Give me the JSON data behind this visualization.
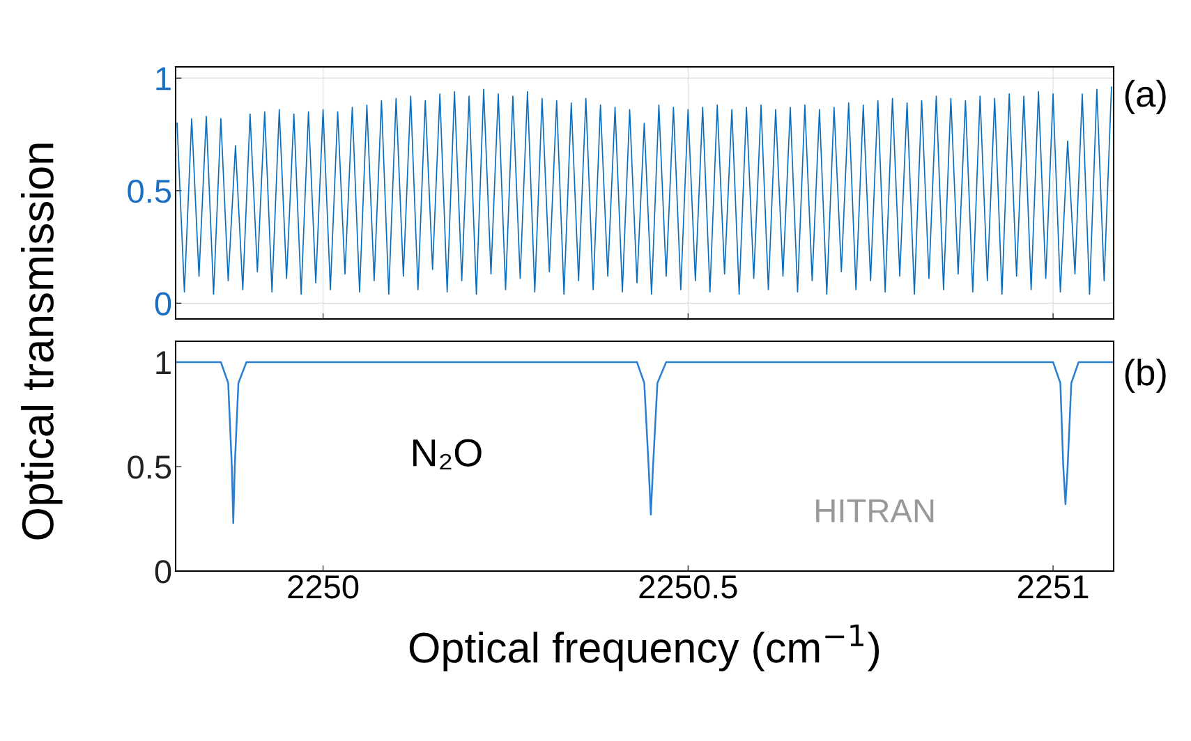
{
  "chart_data": [
    {
      "type": "line",
      "ylabel": "Optical transmission",
      "annotations": [
        "(a)"
      ],
      "xlim": [
        2249.798,
        2251.083
      ],
      "ylim": [
        -0.07,
        1.05
      ],
      "xticks": [
        {
          "value": 2250,
          "label": null
        },
        {
          "value": 2250.5,
          "label": null
        },
        {
          "value": 2251,
          "label": null
        }
      ],
      "yticks": [
        0,
        0.5,
        1
      ],
      "tick_labels": "y",
      "grid": true,
      "series": [
        {
          "color": "#0a6ebd",
          "x": [
            2249.8,
            2249.81,
            2249.82,
            2249.83,
            2249.84,
            2249.85,
            2249.86,
            2249.87,
            2249.88,
            2249.89,
            2249.9,
            2249.91,
            2249.92,
            2249.93,
            2249.94,
            2249.95,
            2249.96,
            2249.97,
            2249.98,
            2249.99,
            2250.0,
            2250.01,
            2250.02,
            2250.03,
            2250.04,
            2250.05,
            2250.06,
            2250.07,
            2250.08,
            2250.09,
            2250.1,
            2250.11,
            2250.12,
            2250.13,
            2250.14,
            2250.15,
            2250.16,
            2250.17,
            2250.18,
            2250.19,
            2250.2,
            2250.21,
            2250.22,
            2250.23,
            2250.24,
            2250.25,
            2250.26,
            2250.27,
            2250.28,
            2250.29,
            2250.3,
            2250.31,
            2250.32,
            2250.33,
            2250.34,
            2250.35,
            2250.36,
            2250.37,
            2250.38,
            2250.39,
            2250.4,
            2250.41,
            2250.42,
            2250.43,
            2250.44,
            2250.45,
            2250.46,
            2250.47,
            2250.48,
            2250.49,
            2250.5,
            2250.51,
            2250.52,
            2250.53,
            2250.54,
            2250.55,
            2250.56,
            2250.57,
            2250.58,
            2250.59,
            2250.6,
            2250.61,
            2250.62,
            2250.63,
            2250.64,
            2250.65,
            2250.66,
            2250.67,
            2250.68,
            2250.69,
            2250.7,
            2250.71,
            2250.72,
            2250.73,
            2250.74,
            2250.75,
            2250.76,
            2250.77,
            2250.78,
            2250.79,
            2250.8,
            2250.81,
            2250.82,
            2250.83,
            2250.84,
            2250.85,
            2250.86,
            2250.87,
            2250.88,
            2250.89,
            2250.9,
            2250.91,
            2250.92,
            2250.93,
            2250.94,
            2250.95,
            2250.96,
            2250.97,
            2250.98,
            2250.99,
            2251.0,
            2251.01,
            2251.02,
            2251.03,
            2251.04,
            2251.05,
            2251.06,
            2251.07,
            2251.08
          ],
          "values": [
            0.8,
            0.05,
            0.82,
            0.12,
            0.83,
            0.04,
            0.82,
            0.1,
            0.7,
            0.06,
            0.84,
            0.14,
            0.85,
            0.05,
            0.86,
            0.11,
            0.84,
            0.04,
            0.85,
            0.09,
            0.86,
            0.06,
            0.85,
            0.13,
            0.87,
            0.05,
            0.88,
            0.1,
            0.9,
            0.04,
            0.91,
            0.12,
            0.92,
            0.06,
            0.9,
            0.15,
            0.93,
            0.05,
            0.94,
            0.1,
            0.92,
            0.04,
            0.95,
            0.13,
            0.93,
            0.06,
            0.92,
            0.11,
            0.94,
            0.05,
            0.91,
            0.14,
            0.9,
            0.04,
            0.89,
            0.1,
            0.91,
            0.06,
            0.88,
            0.12,
            0.87,
            0.05,
            0.86,
            0.09,
            0.8,
            0.04,
            0.88,
            0.12,
            0.87,
            0.06,
            0.86,
            0.1,
            0.87,
            0.05,
            0.88,
            0.13,
            0.86,
            0.04,
            0.87,
            0.11,
            0.88,
            0.06,
            0.86,
            0.12,
            0.87,
            0.05,
            0.88,
            0.1,
            0.86,
            0.04,
            0.87,
            0.14,
            0.89,
            0.06,
            0.88,
            0.1,
            0.9,
            0.05,
            0.91,
            0.12,
            0.89,
            0.04,
            0.9,
            0.11,
            0.92,
            0.06,
            0.91,
            0.13,
            0.9,
            0.05,
            0.92,
            0.1,
            0.91,
            0.04,
            0.93,
            0.12,
            0.92,
            0.06,
            0.94,
            0.11,
            0.93,
            0.05,
            0.72,
            0.13,
            0.93,
            0.04,
            0.95,
            0.1,
            0.96
          ]
        }
      ]
    },
    {
      "type": "line",
      "xlabel": "Optical frequency (cm$^{−1}$)",
      "annotations": [
        "(b)",
        "N₂O",
        "HITRAN"
      ],
      "xlim": [
        2249.798,
        2251.083
      ],
      "ylim": [
        0,
        1.1
      ],
      "xticks": [
        2250,
        2250.5,
        2251
      ],
      "yticks": [
        0,
        0.5,
        1
      ],
      "grid": false,
      "series": [
        {
          "color": "#2a7fd4",
          "x": [
            2249.8,
            2249.86,
            2249.87,
            2249.875,
            2249.877,
            2249.879,
            2249.884,
            2249.895,
            2250.43,
            2250.44,
            2250.446,
            2250.449,
            2250.452,
            2250.458,
            2250.47,
            2251.0,
            2251.01,
            2251.014,
            2251.017,
            2251.02,
            2251.025,
            2251.035,
            2251.083
          ],
          "values": [
            1,
            1,
            0.9,
            0.5,
            0.23,
            0.5,
            0.9,
            1,
            1,
            0.9,
            0.5,
            0.27,
            0.5,
            0.9,
            1,
            1,
            0.9,
            0.5,
            0.32,
            0.5,
            0.9,
            1,
            1
          ]
        }
      ]
    }
  ]
}
